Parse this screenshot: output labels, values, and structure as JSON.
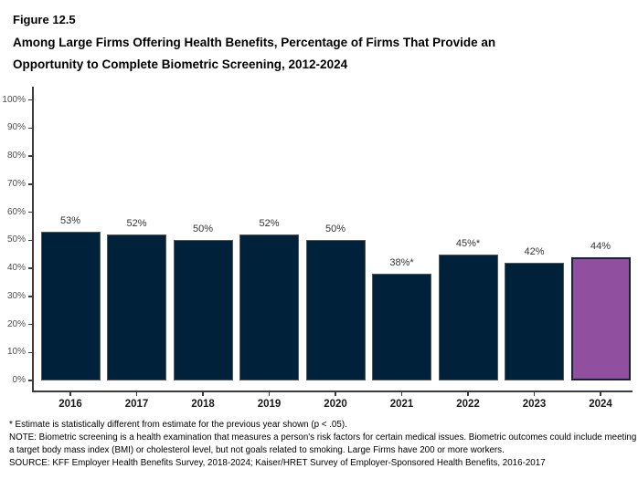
{
  "figure": {
    "label": "Figure 12.5",
    "title": "Among Large Firms Offering Health Benefits, Percentage of Firms That Provide an Opportunity to Complete Biometric Screening, 2012-2024"
  },
  "chart_data": {
    "type": "bar",
    "title": "Among Large Firms Offering Health Benefits, Percentage of Firms That Provide an Opportunity to Complete Biometric Screening, 2012-2024",
    "categories": [
      "2016",
      "2017",
      "2018",
      "2019",
      "2020",
      "2021",
      "2022",
      "2023",
      "2024"
    ],
    "values": [
      53,
      52,
      50,
      52,
      50,
      38,
      45,
      42,
      44
    ],
    "bar_labels": [
      "53%",
      "52%",
      "50%",
      "52%",
      "50%",
      "38%*",
      "45%*",
      "42%",
      "44%"
    ],
    "highlight_index": 8,
    "xlabel": "",
    "ylabel": "",
    "ylim": [
      0,
      100
    ],
    "ytick_labels": [
      "0%",
      "10%",
      "20%",
      "30%",
      "40%",
      "50%",
      "60%",
      "70%",
      "80%",
      "90%",
      "100%"
    ],
    "grid": false,
    "legend": false,
    "colors": {
      "bar": "#00213A",
      "bar_border": "#55575B",
      "highlight": "#91509F",
      "highlight_border": "#16243B",
      "axis": "#3C3C3C",
      "tick_label": "#4D4D4D",
      "value_label": "#333333"
    }
  },
  "footnotes": {
    "significance": "* Estimate is statistically different from estimate for the previous year shown (p < .05).",
    "note": "NOTE: Biometric screening is a health examination that measures a person's risk factors for certain medical issues. Biometric outcomes could include meeting a target body mass index (BMI) or cholesterol level, but not goals related to smoking. Large Firms have 200 or more workers.",
    "source": "SOURCE: KFF Employer Health Benefits Survey, 2018-2024; Kaiser/HRET Survey of Employer-Sponsored Health Benefits, 2016-2017"
  }
}
